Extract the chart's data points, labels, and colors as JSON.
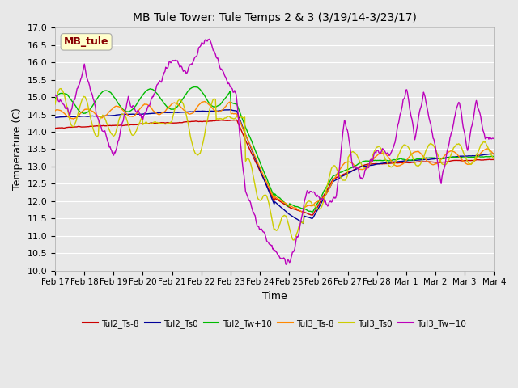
{
  "title": "MB Tule Tower: Tule Temps 2 & 3 (3/19/14-3/23/17)",
  "xlabel": "Time",
  "ylabel": "Temperature (C)",
  "ylim": [
    10.0,
    17.0
  ],
  "yticks": [
    10.0,
    10.5,
    11.0,
    11.5,
    12.0,
    12.5,
    13.0,
    13.5,
    14.0,
    14.5,
    15.0,
    15.5,
    16.0,
    16.5,
    17.0
  ],
  "xtick_labels": [
    "Feb 17",
    "Feb 18",
    "Feb 19",
    "Feb 20",
    "Feb 21",
    "Feb 22",
    "Feb 23",
    "Feb 24",
    "Feb 25",
    "Feb 26",
    "Feb 27",
    "Feb 28",
    "Mar 1",
    "Mar 2",
    "Mar 3",
    "Mar 4"
  ],
  "legend_labels": [
    "Tul2_Ts-8",
    "Tul2_Ts0",
    "Tul2_Tw+10",
    "Tul3_Ts-8",
    "Tul3_Ts0",
    "Tul3_Tw+10"
  ],
  "line_colors": [
    "#cc0000",
    "#000099",
    "#00bb00",
    "#ff8800",
    "#cccc00",
    "#bb00bb"
  ],
  "annotation_text": "MB_tule",
  "annotation_color": "#880000",
  "annotation_bg": "#ffffcc",
  "bg_color": "#e8e8e8",
  "grid_color": "#ffffff"
}
